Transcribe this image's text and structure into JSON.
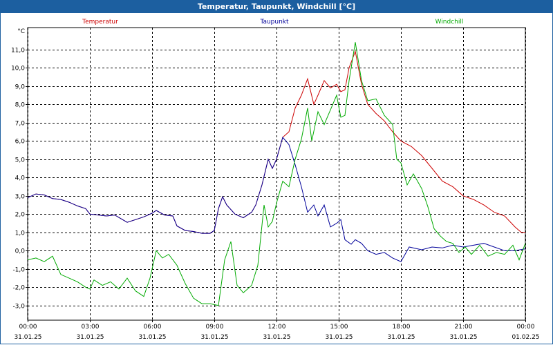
{
  "window": {
    "title": "Temperatur, Taupunkt, Windchill [°C]"
  },
  "chart_data": {
    "type": "line",
    "title": "Temperatur, Taupunkt, Windchill [°C]",
    "ylabel": "°C",
    "xlabel": "",
    "ylim": [
      -3.8,
      12.2
    ],
    "xlim": [
      0,
      24
    ],
    "grid": true,
    "legend_position": "top",
    "y_ticks": [
      -3.0,
      -2.0,
      -1.0,
      0.0,
      1.0,
      2.0,
      3.0,
      4.0,
      5.0,
      6.0,
      7.0,
      8.0,
      9.0,
      10.0,
      11.0
    ],
    "y_tick_labels": [
      "-3,0",
      "-2,0",
      "-1,0",
      "0,0",
      "1,0",
      "2,0",
      "3,0",
      "4,0",
      "5,0",
      "6,0",
      "7,0",
      "8,0",
      "9,0",
      "10,0",
      "11,0"
    ],
    "x_ticks": [
      {
        "x": 0,
        "time": "00:00",
        "date": "31.01.25"
      },
      {
        "x": 3,
        "time": "03:00",
        "date": "31.01.25"
      },
      {
        "x": 6,
        "time": "06:00",
        "date": "31.01.25"
      },
      {
        "x": 9,
        "time": "09:00",
        "date": "31.01.25"
      },
      {
        "x": 12,
        "time": "12:00",
        "date": "31.01.25"
      },
      {
        "x": 15,
        "time": "15:00",
        "date": "31.01.25"
      },
      {
        "x": 18,
        "time": "18:00",
        "date": "31.01.25"
      },
      {
        "x": 21,
        "time": "21:00",
        "date": "31.01.25"
      },
      {
        "x": 24,
        "time": "00:00",
        "date": "01.02.25"
      }
    ],
    "series": [
      {
        "name": "Temperatur",
        "color": "#cc0000",
        "points": [
          [
            0,
            2.9
          ],
          [
            0.4,
            3.1
          ],
          [
            0.8,
            3.05
          ],
          [
            1.2,
            2.85
          ],
          [
            1.6,
            2.8
          ],
          [
            2.0,
            2.65
          ],
          [
            2.4,
            2.45
          ],
          [
            2.8,
            2.3
          ],
          [
            3.0,
            2.0
          ],
          [
            3.4,
            1.95
          ],
          [
            3.8,
            1.9
          ],
          [
            4.2,
            1.95
          ],
          [
            4.5,
            1.75
          ],
          [
            4.8,
            1.55
          ],
          [
            5.2,
            1.7
          ],
          [
            5.6,
            1.85
          ],
          [
            6.0,
            2.05
          ],
          [
            6.2,
            2.2
          ],
          [
            6.6,
            1.95
          ],
          [
            7.0,
            1.9
          ],
          [
            7.2,
            1.35
          ],
          [
            7.6,
            1.1
          ],
          [
            8.0,
            1.05
          ],
          [
            8.4,
            0.95
          ],
          [
            8.8,
            0.95
          ],
          [
            9.0,
            1.1
          ],
          [
            9.2,
            2.3
          ],
          [
            9.4,
            2.95
          ],
          [
            9.6,
            2.5
          ],
          [
            10.0,
            2.0
          ],
          [
            10.4,
            1.8
          ],
          [
            10.8,
            2.1
          ],
          [
            11.0,
            2.5
          ],
          [
            11.3,
            3.6
          ],
          [
            11.6,
            5.0
          ],
          [
            11.8,
            4.5
          ],
          [
            12.0,
            5.0
          ],
          [
            12.3,
            6.2
          ],
          [
            12.6,
            6.5
          ],
          [
            12.9,
            7.8
          ],
          [
            13.2,
            8.5
          ],
          [
            13.5,
            9.4
          ],
          [
            13.8,
            8.0
          ],
          [
            14.0,
            8.5
          ],
          [
            14.3,
            9.3
          ],
          [
            14.6,
            8.9
          ],
          [
            14.9,
            9.1
          ],
          [
            15.1,
            8.7
          ],
          [
            15.3,
            8.8
          ],
          [
            15.5,
            10.0
          ],
          [
            15.8,
            10.9
          ],
          [
            16.1,
            9.1
          ],
          [
            16.4,
            8.0
          ],
          [
            16.8,
            7.5
          ],
          [
            17.2,
            7.1
          ],
          [
            17.6,
            6.5
          ],
          [
            18.0,
            6.0
          ],
          [
            18.5,
            5.7
          ],
          [
            19.0,
            5.2
          ],
          [
            19.5,
            4.5
          ],
          [
            20.0,
            3.8
          ],
          [
            20.5,
            3.5
          ],
          [
            21.0,
            3.0
          ],
          [
            21.5,
            2.8
          ],
          [
            22.0,
            2.5
          ],
          [
            22.5,
            2.1
          ],
          [
            23.0,
            1.9
          ],
          [
            23.5,
            1.3
          ],
          [
            23.8,
            1.0
          ],
          [
            24.0,
            1.0
          ]
        ]
      },
      {
        "name": "Taupunkt",
        "color": "#000099",
        "points": [
          [
            0,
            2.9
          ],
          [
            0.4,
            3.1
          ],
          [
            0.8,
            3.05
          ],
          [
            1.2,
            2.85
          ],
          [
            1.6,
            2.8
          ],
          [
            2.0,
            2.65
          ],
          [
            2.4,
            2.45
          ],
          [
            2.8,
            2.3
          ],
          [
            3.0,
            2.0
          ],
          [
            3.4,
            1.95
          ],
          [
            3.8,
            1.9
          ],
          [
            4.2,
            1.95
          ],
          [
            4.5,
            1.75
          ],
          [
            4.8,
            1.55
          ],
          [
            5.2,
            1.7
          ],
          [
            5.6,
            1.85
          ],
          [
            6.0,
            2.05
          ],
          [
            6.2,
            2.2
          ],
          [
            6.6,
            1.95
          ],
          [
            7.0,
            1.9
          ],
          [
            7.2,
            1.35
          ],
          [
            7.6,
            1.1
          ],
          [
            8.0,
            1.05
          ],
          [
            8.4,
            0.95
          ],
          [
            8.8,
            0.95
          ],
          [
            9.0,
            1.1
          ],
          [
            9.2,
            2.3
          ],
          [
            9.4,
            2.95
          ],
          [
            9.6,
            2.5
          ],
          [
            10.0,
            2.0
          ],
          [
            10.4,
            1.8
          ],
          [
            10.8,
            2.1
          ],
          [
            11.0,
            2.5
          ],
          [
            11.3,
            3.6
          ],
          [
            11.6,
            5.0
          ],
          [
            11.8,
            4.5
          ],
          [
            12.0,
            5.0
          ],
          [
            12.3,
            6.2
          ],
          [
            12.6,
            5.8
          ],
          [
            12.9,
            4.7
          ],
          [
            13.2,
            3.5
          ],
          [
            13.5,
            2.1
          ],
          [
            13.8,
            2.5
          ],
          [
            14.0,
            1.9
          ],
          [
            14.3,
            2.5
          ],
          [
            14.6,
            1.3
          ],
          [
            14.9,
            1.5
          ],
          [
            15.1,
            1.7
          ],
          [
            15.3,
            0.6
          ],
          [
            15.6,
            0.35
          ],
          [
            15.8,
            0.6
          ],
          [
            16.1,
            0.4
          ],
          [
            16.4,
            0.0
          ],
          [
            16.8,
            -0.2
          ],
          [
            17.2,
            -0.1
          ],
          [
            17.6,
            -0.4
          ],
          [
            18.0,
            -0.6
          ],
          [
            18.4,
            0.2
          ],
          [
            19.0,
            0.05
          ],
          [
            19.5,
            0.2
          ],
          [
            20.0,
            0.15
          ],
          [
            20.5,
            0.3
          ],
          [
            21.0,
            0.2
          ],
          [
            21.5,
            0.3
          ],
          [
            22.0,
            0.4
          ],
          [
            22.5,
            0.2
          ],
          [
            23.0,
            0.0
          ],
          [
            23.5,
            0.0
          ],
          [
            24.0,
            0.1
          ]
        ]
      },
      {
        "name": "Windchill",
        "color": "#00aa00",
        "points": [
          [
            0,
            -0.5
          ],
          [
            0.4,
            -0.4
          ],
          [
            0.8,
            -0.6
          ],
          [
            1.2,
            -0.3
          ],
          [
            1.6,
            -1.3
          ],
          [
            2.0,
            -1.5
          ],
          [
            2.4,
            -1.7
          ],
          [
            2.8,
            -2.0
          ],
          [
            3.0,
            -2.1
          ],
          [
            3.2,
            -1.6
          ],
          [
            3.6,
            -1.9
          ],
          [
            4.0,
            -1.7
          ],
          [
            4.4,
            -2.1
          ],
          [
            4.8,
            -1.5
          ],
          [
            5.2,
            -2.2
          ],
          [
            5.6,
            -2.5
          ],
          [
            5.9,
            -1.5
          ],
          [
            6.2,
            0.0
          ],
          [
            6.5,
            -0.4
          ],
          [
            6.8,
            -0.2
          ],
          [
            7.2,
            -0.8
          ],
          [
            7.6,
            -1.8
          ],
          [
            8.0,
            -2.6
          ],
          [
            8.4,
            -2.9
          ],
          [
            8.8,
            -2.9
          ],
          [
            9.2,
            -3.0
          ],
          [
            9.5,
            -0.5
          ],
          [
            9.8,
            0.5
          ],
          [
            10.1,
            -1.9
          ],
          [
            10.4,
            -2.3
          ],
          [
            10.8,
            -1.9
          ],
          [
            11.1,
            -0.8
          ],
          [
            11.4,
            2.5
          ],
          [
            11.6,
            1.3
          ],
          [
            11.8,
            1.6
          ],
          [
            12.0,
            2.6
          ],
          [
            12.3,
            3.8
          ],
          [
            12.6,
            3.5
          ],
          [
            12.9,
            5.0
          ],
          [
            13.2,
            6.1
          ],
          [
            13.5,
            7.8
          ],
          [
            13.7,
            6.0
          ],
          [
            14.0,
            7.6
          ],
          [
            14.3,
            6.9
          ],
          [
            14.6,
            7.7
          ],
          [
            14.9,
            8.5
          ],
          [
            15.1,
            7.3
          ],
          [
            15.3,
            7.4
          ],
          [
            15.5,
            9.3
          ],
          [
            15.8,
            11.4
          ],
          [
            16.1,
            9.3
          ],
          [
            16.4,
            8.2
          ],
          [
            16.8,
            8.3
          ],
          [
            17.2,
            7.4
          ],
          [
            17.6,
            6.9
          ],
          [
            17.8,
            5.0
          ],
          [
            18.0,
            4.8
          ],
          [
            18.3,
            3.6
          ],
          [
            18.6,
            4.2
          ],
          [
            19.0,
            3.4
          ],
          [
            19.3,
            2.4
          ],
          [
            19.6,
            1.2
          ],
          [
            19.9,
            0.8
          ],
          [
            20.2,
            0.5
          ],
          [
            20.5,
            0.4
          ],
          [
            20.8,
            -0.1
          ],
          [
            21.1,
            0.2
          ],
          [
            21.4,
            -0.2
          ],
          [
            21.8,
            0.3
          ],
          [
            22.2,
            -0.3
          ],
          [
            22.6,
            -0.1
          ],
          [
            23.0,
            -0.2
          ],
          [
            23.4,
            0.3
          ],
          [
            23.7,
            -0.5
          ],
          [
            24.0,
            0.4
          ]
        ]
      }
    ]
  }
}
